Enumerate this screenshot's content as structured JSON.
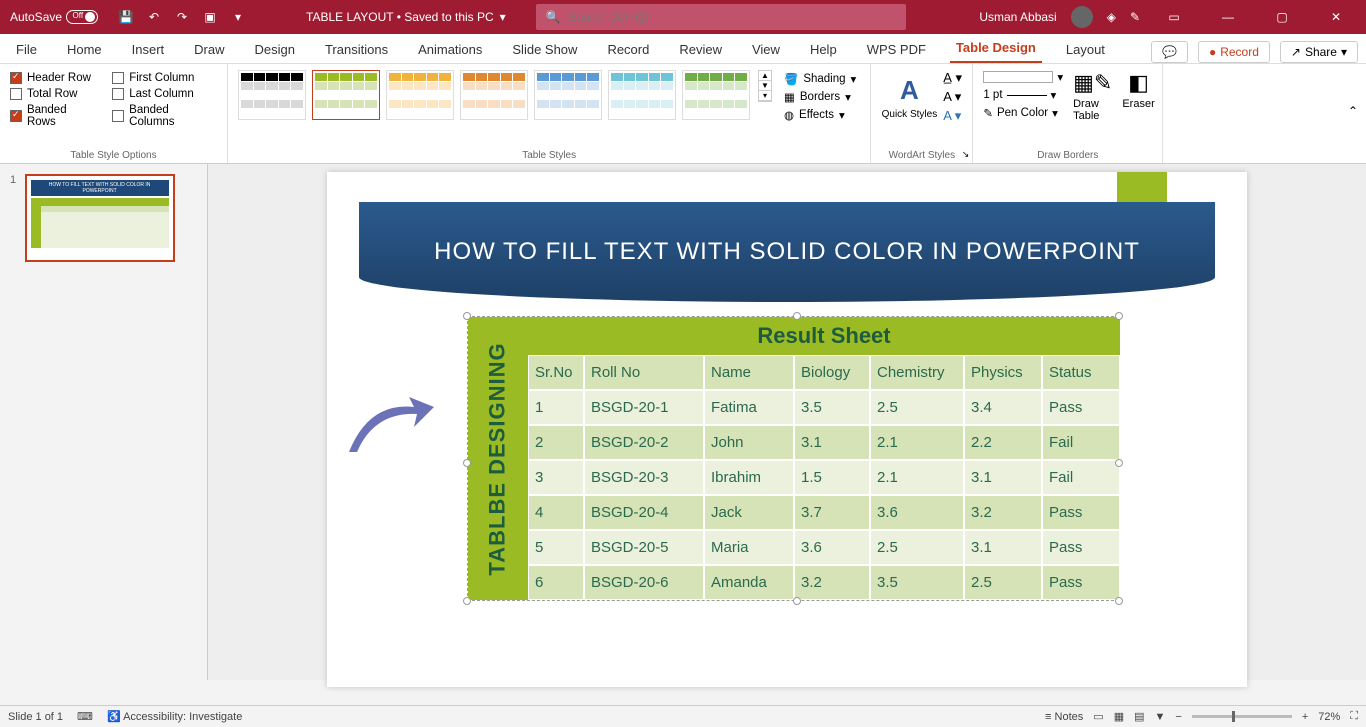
{
  "titlebar": {
    "autosave": "AutoSave",
    "autosave_state": "Off",
    "doc": "TABLE LAYOUT • Saved to this PC",
    "search_placeholder": "Search (Alt+Q)",
    "user": "Usman Abbasi"
  },
  "tabs": {
    "items": [
      "File",
      "Home",
      "Insert",
      "Draw",
      "Design",
      "Transitions",
      "Animations",
      "Slide Show",
      "Record",
      "Review",
      "View",
      "Help",
      "WPS PDF",
      "Table Design",
      "Layout"
    ],
    "active": "Table Design",
    "record": "Record",
    "share": "Share"
  },
  "style_options": {
    "col1": [
      {
        "label": "Header Row",
        "checked": true
      },
      {
        "label": "Total Row",
        "checked": false
      },
      {
        "label": "Banded Rows",
        "checked": true
      }
    ],
    "col2": [
      {
        "label": "First Column",
        "checked": false
      },
      {
        "label": "Last Column",
        "checked": false
      },
      {
        "label": "Banded Columns",
        "checked": false
      }
    ],
    "group_label": "Table Style Options"
  },
  "table_styles": {
    "group_label": "Table Styles",
    "palettes": [
      {
        "header": "#000",
        "body": "#d9d9d9",
        "sel": false
      },
      {
        "header": "#9bbb25",
        "body": "#d5e3b6",
        "sel": true
      },
      {
        "header": "#f0b43c",
        "body": "#fce6c4",
        "sel": false
      },
      {
        "header": "#e08830",
        "body": "#f7dec4",
        "sel": false
      },
      {
        "header": "#5b9bd5",
        "body": "#d3e3f1",
        "sel": false
      },
      {
        "header": "#6fc5d8",
        "body": "#daeff4",
        "sel": false
      },
      {
        "header": "#70ad47",
        "body": "#d7e7ca",
        "sel": false
      }
    ],
    "shading": "Shading",
    "borders": "Borders",
    "effects": "Effects"
  },
  "wordart": {
    "group_label": "WordArt Styles",
    "quick": "Quick Styles"
  },
  "draw_borders": {
    "group_label": "Draw Borders",
    "pen_weight": "1 pt",
    "pen_color": "Pen Color",
    "draw": "Draw Table",
    "eraser": "Eraser"
  },
  "slide": {
    "title": "HOW TO FILL TEXT WITH SOLID COLOR IN POWERPOINT",
    "vert_label": "TABLBE DESIGNING",
    "table_title": "Result  Sheet",
    "columns": [
      "Sr.No",
      "Roll No",
      "Name",
      "Biology",
      "Chemistry",
      "Physics",
      "Status"
    ],
    "rows": [
      [
        "1",
        "BSGD-20-1",
        "Fatima",
        "3.5",
        "2.5",
        "3.4",
        "Pass"
      ],
      [
        "2",
        "BSGD-20-2",
        "John",
        "3.1",
        "2.1",
        "2.2",
        "Fail"
      ],
      [
        "3",
        "BSGD-20-3",
        "Ibrahim",
        "1.5",
        "2.1",
        "3.1",
        "Fail"
      ],
      [
        "4",
        "BSGD-20-4",
        "Jack",
        "3.7",
        "3.6",
        "3.2",
        "Pass"
      ],
      [
        "5",
        "BSGD-20-5",
        "Maria",
        "3.6",
        "2.5",
        "3.1",
        "Pass"
      ],
      [
        "6",
        "BSGD-20-6",
        "Amanda",
        "3.2",
        "3.5",
        "2.5",
        "Pass"
      ]
    ],
    "colors": {
      "banner": "#1e4877",
      "accent": "#9bbb25",
      "header_cell": "#d5e3b6",
      "body_cell": "#ebf1dc",
      "text": "#2b6a4e",
      "arrow": "#6b72b8"
    }
  },
  "status": {
    "slide": "Slide 1 of 1",
    "access": "Accessibility: Investigate",
    "notes": "Notes",
    "zoom": "72%"
  }
}
